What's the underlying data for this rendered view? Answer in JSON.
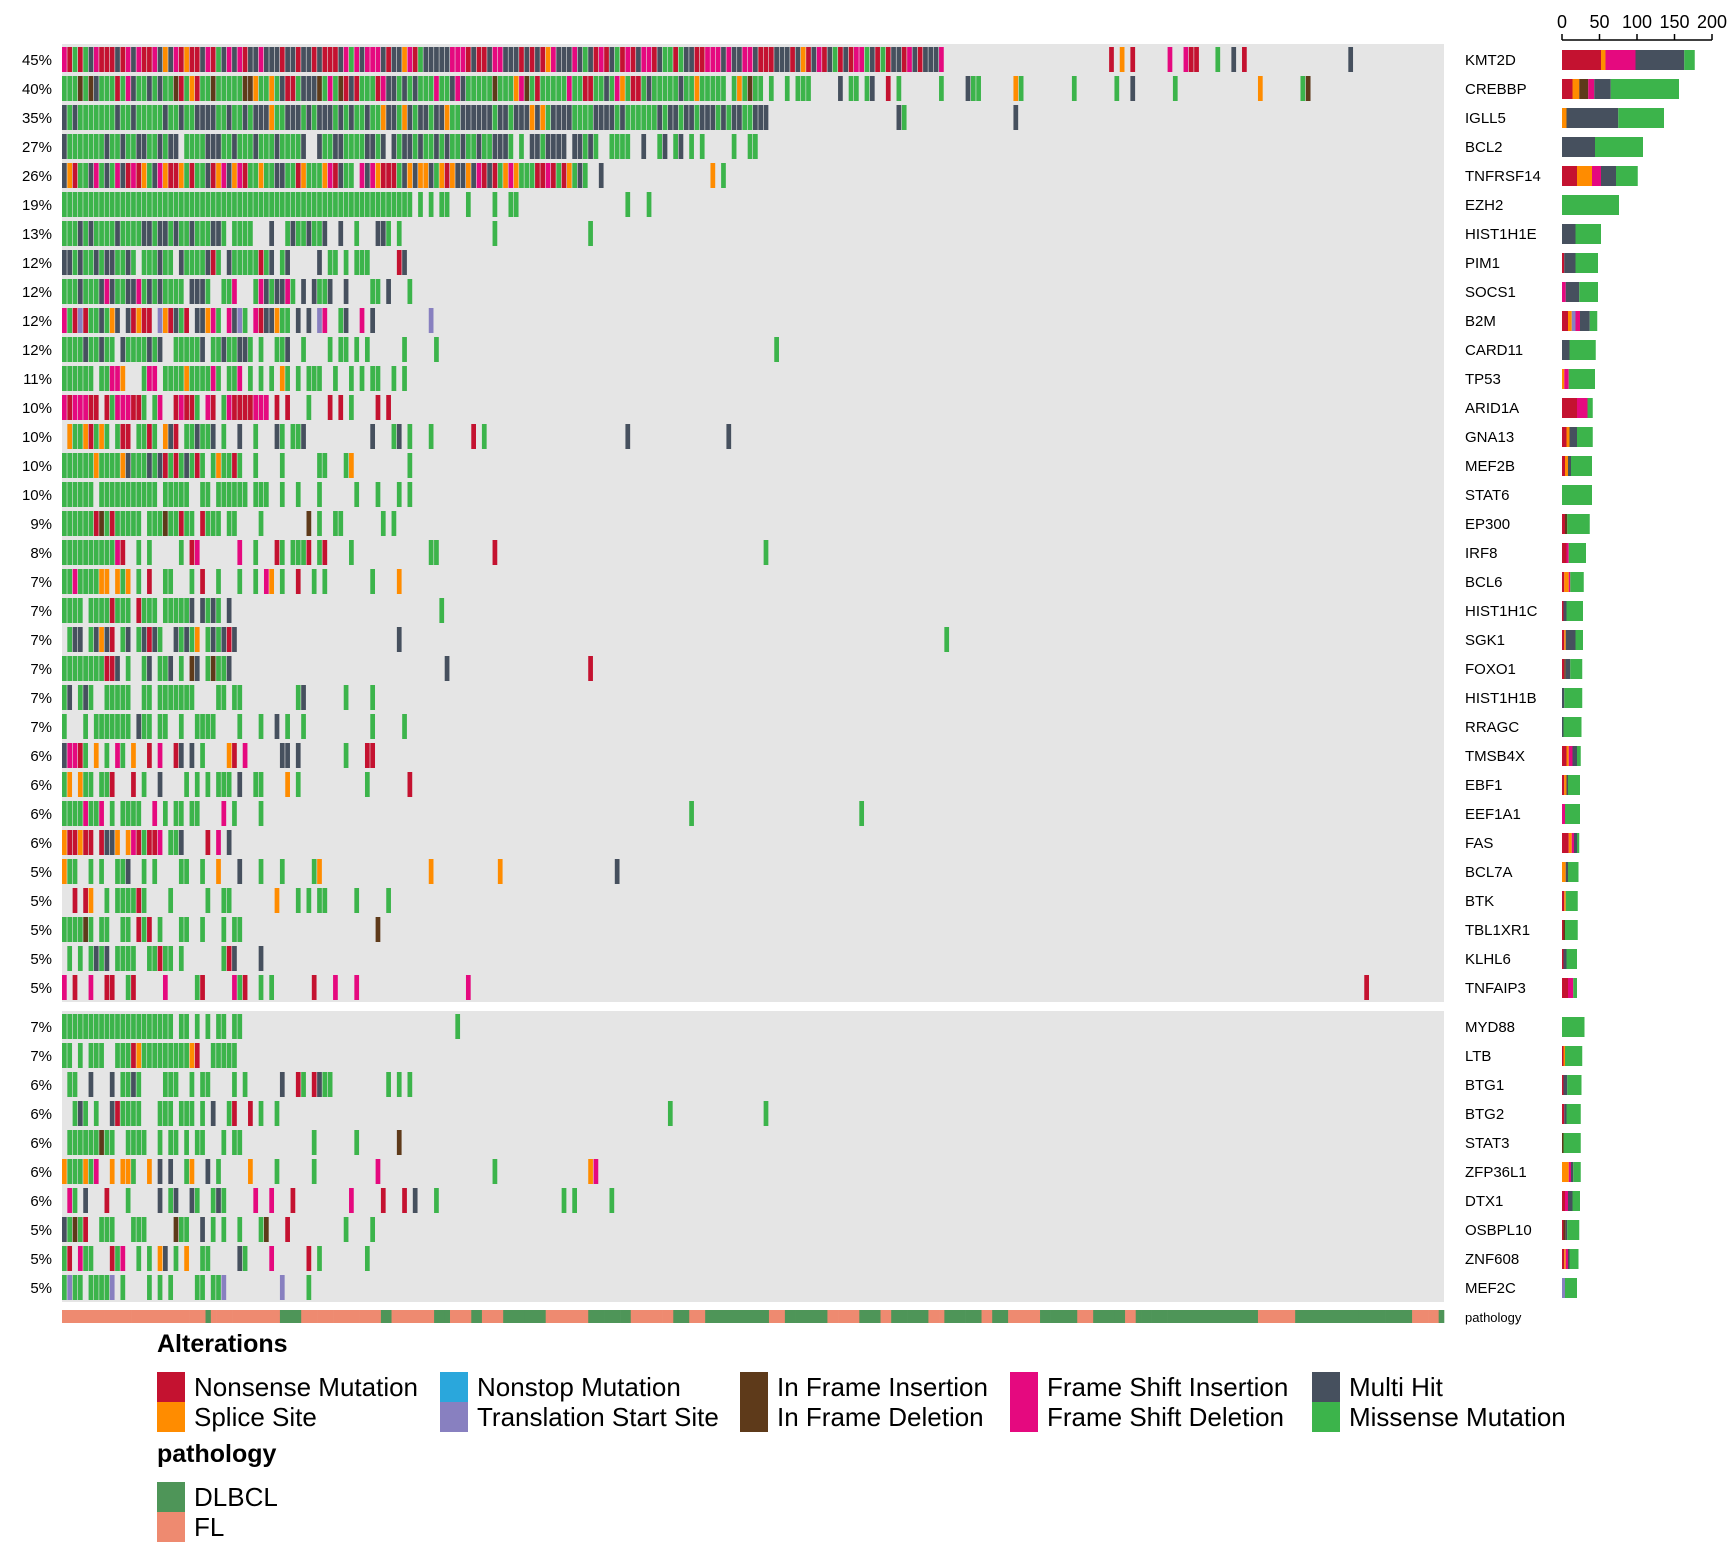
{
  "chart_data": {
    "type": "heatmap",
    "title": "",
    "n_samples": 260,
    "top_axis": {
      "ticks": [
        0,
        50,
        100,
        150,
        200
      ],
      "labels": [
        "0",
        "50",
        "100",
        "150",
        "200"
      ],
      "max": 200
    },
    "alteration_types": [
      {
        "name": "Nonsense Mutation",
        "color": "#C41230"
      },
      {
        "name": "Splice Site",
        "color": "#FF8C00"
      },
      {
        "name": "Nonstop Mutation",
        "color": "#2AA7DC"
      },
      {
        "name": "Translation Start Site",
        "color": "#8880C0"
      },
      {
        "name": "In Frame Insertion",
        "color": "#5E3A1A"
      },
      {
        "name": "In Frame Deletion",
        "color": "#5E3A1A"
      },
      {
        "name": "Frame Shift Insertion",
        "color": "#E5097F"
      },
      {
        "name": "Frame Shift Deletion",
        "color": "#E5097F"
      },
      {
        "name": "Multi Hit",
        "color": "#46505E"
      },
      {
        "name": "Missense Mutation",
        "color": "#3CB44B"
      }
    ],
    "genes_group1": [
      {
        "gene": "KMT2D",
        "pct": "45%",
        "total": 177,
        "breakdown": {
          "Nonsense Mutation": 52,
          "Splice Site": 6,
          "Frame Shift Insertion": 40,
          "Multi Hit": 65,
          "Missense Mutation": 14
        }
      },
      {
        "gene": "CREBBP",
        "pct": "40%",
        "total": 156,
        "breakdown": {
          "Nonsense Mutation": 14,
          "Splice Site": 9,
          "In Frame Deletion": 12,
          "Frame Shift Insertion": 8,
          "Multi Hit": 22,
          "Missense Mutation": 91
        }
      },
      {
        "gene": "IGLL5",
        "pct": "35%",
        "total": 136,
        "breakdown": {
          "Splice Site": 6,
          "Multi Hit": 69,
          "Missense Mutation": 61
        }
      },
      {
        "gene": "BCL2",
        "pct": "27%",
        "total": 108,
        "breakdown": {
          "Multi Hit": 44,
          "Missense Mutation": 64
        }
      },
      {
        "gene": "TNFRSF14",
        "pct": "26%",
        "total": 101,
        "breakdown": {
          "Nonsense Mutation": 20,
          "Splice Site": 20,
          "Frame Shift Insertion": 12,
          "Multi Hit": 20,
          "Missense Mutation": 29
        }
      },
      {
        "gene": "EZH2",
        "pct": "19%",
        "total": 76,
        "breakdown": {
          "Missense Mutation": 76
        }
      },
      {
        "gene": "HIST1H1E",
        "pct": "13%",
        "total": 52,
        "breakdown": {
          "Multi Hit": 18,
          "Missense Mutation": 34
        }
      },
      {
        "gene": "PIM1",
        "pct": "12%",
        "total": 48,
        "breakdown": {
          "Nonsense Mutation": 3,
          "Multi Hit": 15,
          "Missense Mutation": 30
        }
      },
      {
        "gene": "SOCS1",
        "pct": "12%",
        "total": 48,
        "breakdown": {
          "Frame Shift Insertion": 5,
          "Multi Hit": 18,
          "Missense Mutation": 25
        }
      },
      {
        "gene": "B2M",
        "pct": "12%",
        "total": 47,
        "breakdown": {
          "Nonsense Mutation": 8,
          "Splice Site": 5,
          "Translation Start Site": 5,
          "Frame Shift Insertion": 6,
          "Multi Hit": 13,
          "Missense Mutation": 10
        }
      },
      {
        "gene": "CARD11",
        "pct": "12%",
        "total": 45,
        "breakdown": {
          "Multi Hit": 10,
          "Missense Mutation": 35
        }
      },
      {
        "gene": "TP53",
        "pct": "11%",
        "total": 44,
        "breakdown": {
          "Splice Site": 3,
          "Frame Shift Insertion": 6,
          "Missense Mutation": 35
        }
      },
      {
        "gene": "ARID1A",
        "pct": "10%",
        "total": 41,
        "breakdown": {
          "Nonsense Mutation": 20,
          "Frame Shift Insertion": 14,
          "Missense Mutation": 7
        }
      },
      {
        "gene": "GNA13",
        "pct": "10%",
        "total": 41,
        "breakdown": {
          "Nonsense Mutation": 6,
          "Splice Site": 4,
          "Multi Hit": 10,
          "Missense Mutation": 21
        }
      },
      {
        "gene": "MEF2B",
        "pct": "10%",
        "total": 40,
        "breakdown": {
          "Nonsense Mutation": 4,
          "Splice Site": 4,
          "Multi Hit": 4,
          "Missense Mutation": 28
        }
      },
      {
        "gene": "STAT6",
        "pct": "10%",
        "total": 40,
        "breakdown": {
          "Missense Mutation": 40
        }
      },
      {
        "gene": "EP300",
        "pct": "9%",
        "total": 37,
        "breakdown": {
          "Nonsense Mutation": 4,
          "In Frame Deletion": 3,
          "Missense Mutation": 30
        }
      },
      {
        "gene": "IRF8",
        "pct": "8%",
        "total": 32,
        "breakdown": {
          "Nonsense Mutation": 6,
          "Frame Shift Insertion": 3,
          "Missense Mutation": 23
        }
      },
      {
        "gene": "BCL6",
        "pct": "7%",
        "total": 29,
        "breakdown": {
          "Nonsense Mutation": 3,
          "Splice Site": 6,
          "Frame Shift Insertion": 2,
          "Missense Mutation": 18
        }
      },
      {
        "gene": "HIST1H1C",
        "pct": "7%",
        "total": 28,
        "breakdown": {
          "Nonsense Mutation": 2,
          "Multi Hit": 4,
          "Missense Mutation": 22
        }
      },
      {
        "gene": "SGK1",
        "pct": "7%",
        "total": 28,
        "breakdown": {
          "Nonsense Mutation": 3,
          "Splice Site": 2,
          "Multi Hit": 13,
          "Missense Mutation": 10
        }
      },
      {
        "gene": "FOXO1",
        "pct": "7%",
        "total": 27,
        "breakdown": {
          "Nonsense Mutation": 3,
          "In Frame Deletion": 2,
          "Multi Hit": 6,
          "Missense Mutation": 16
        }
      },
      {
        "gene": "HIST1H1B",
        "pct": "7%",
        "total": 27,
        "breakdown": {
          "Multi Hit": 3,
          "Missense Mutation": 24
        }
      },
      {
        "gene": "RRAGC",
        "pct": "7%",
        "total": 26,
        "breakdown": {
          "Multi Hit": 2,
          "Missense Mutation": 24
        }
      },
      {
        "gene": "TMSB4X",
        "pct": "6%",
        "total": 25,
        "breakdown": {
          "Nonsense Mutation": 6,
          "Splice Site": 3,
          "Frame Shift Insertion": 5,
          "Multi Hit": 6,
          "Missense Mutation": 5
        }
      },
      {
        "gene": "EBF1",
        "pct": "6%",
        "total": 24,
        "breakdown": {
          "Nonsense Mutation": 3,
          "Splice Site": 3,
          "Multi Hit": 2,
          "Missense Mutation": 16
        }
      },
      {
        "gene": "EEF1A1",
        "pct": "6%",
        "total": 24,
        "breakdown": {
          "Frame Shift Insertion": 4,
          "Missense Mutation": 20
        }
      },
      {
        "gene": "FAS",
        "pct": "6%",
        "total": 23,
        "breakdown": {
          "Nonsense Mutation": 9,
          "Splice Site": 4,
          "Frame Shift Insertion": 3,
          "Multi Hit": 4,
          "Missense Mutation": 3
        }
      },
      {
        "gene": "BCL7A",
        "pct": "5%",
        "total": 22,
        "breakdown": {
          "Splice Site": 5,
          "Multi Hit": 3,
          "Missense Mutation": 14
        }
      },
      {
        "gene": "BTK",
        "pct": "5%",
        "total": 21,
        "breakdown": {
          "Nonsense Mutation": 3,
          "Splice Site": 2,
          "Missense Mutation": 16
        }
      },
      {
        "gene": "TBL1XR1",
        "pct": "5%",
        "total": 21,
        "breakdown": {
          "Nonsense Mutation": 2,
          "In Frame Deletion": 2,
          "Missense Mutation": 17
        }
      },
      {
        "gene": "KLHL6",
        "pct": "5%",
        "total": 20,
        "breakdown": {
          "Nonsense Mutation": 2,
          "Multi Hit": 4,
          "Missense Mutation": 14
        }
      },
      {
        "gene": "TNFAIP3",
        "pct": "5%",
        "total": 20,
        "breakdown": {
          "Nonsense Mutation": 8,
          "Frame Shift Insertion": 7,
          "Missense Mutation": 5
        }
      }
    ],
    "genes_group2": [
      {
        "gene": "MYD88",
        "pct": "7%",
        "total": 30,
        "breakdown": {
          "Missense Mutation": 30
        }
      },
      {
        "gene": "LTB",
        "pct": "7%",
        "total": 27,
        "breakdown": {
          "Nonsense Mutation": 2,
          "Splice Site": 2,
          "Missense Mutation": 23
        }
      },
      {
        "gene": "BTG1",
        "pct": "6%",
        "total": 26,
        "breakdown": {
          "Nonsense Mutation": 2,
          "Multi Hit": 5,
          "Missense Mutation": 19
        }
      },
      {
        "gene": "BTG2",
        "pct": "6%",
        "total": 25,
        "breakdown": {
          "Nonsense Mutation": 3,
          "Multi Hit": 3,
          "Missense Mutation": 19
        }
      },
      {
        "gene": "STAT3",
        "pct": "6%",
        "total": 25,
        "breakdown": {
          "In Frame Deletion": 2,
          "Missense Mutation": 23
        }
      },
      {
        "gene": "ZFP36L1",
        "pct": "6%",
        "total": 25,
        "breakdown": {
          "Splice Site": 9,
          "Frame Shift Insertion": 3,
          "Multi Hit": 3,
          "Missense Mutation": 10
        }
      },
      {
        "gene": "DTX1",
        "pct": "6%",
        "total": 24,
        "breakdown": {
          "Nonsense Mutation": 4,
          "Frame Shift Insertion": 4,
          "Multi Hit": 6,
          "Missense Mutation": 10
        }
      },
      {
        "gene": "OSBPL10",
        "pct": "5%",
        "total": 23,
        "breakdown": {
          "Nonsense Mutation": 2,
          "In Frame Deletion": 3,
          "Multi Hit": 2,
          "Missense Mutation": 16
        }
      },
      {
        "gene": "ZNF608",
        "pct": "5%",
        "total": 22,
        "breakdown": {
          "Nonsense Mutation": 3,
          "Splice Site": 2,
          "Frame Shift Insertion": 3,
          "Multi Hit": 2,
          "Missense Mutation": 12
        }
      },
      {
        "gene": "MEF2C",
        "pct": "5%",
        "total": 20,
        "breakdown": {
          "Translation Start Site": 4,
          "Missense Mutation": 16
        }
      }
    ],
    "annotation": {
      "label": "pathology",
      "categories": [
        {
          "name": "DLBCL",
          "color": "#4E9558"
        },
        {
          "name": "FL",
          "color": "#EE8A70"
        }
      ],
      "dlbcl_fraction": 0.48
    },
    "colors": {
      "background": "#E5E5E5",
      "no_alteration": "#E5E5E5"
    }
  },
  "legend": {
    "alterations_title": "Alterations",
    "alterations": [
      [
        "Nonsense Mutation",
        "#C41230"
      ],
      [
        "Splice Site",
        "#FF8C00"
      ],
      [
        "Nonstop Mutation",
        "#2AA7DC"
      ],
      [
        "Translation Start Site",
        "#8880C0"
      ],
      [
        "In Frame Insertion",
        "#5E3A1A"
      ],
      [
        "In Frame Deletion",
        "#5E3A1A"
      ],
      [
        "Frame Shift Insertion",
        "#E5097F"
      ],
      [
        "Frame Shift Deletion",
        "#E5097F"
      ],
      [
        "Multi Hit",
        "#46505E"
      ],
      [
        "Missense Mutation",
        "#3CB44B"
      ]
    ],
    "pathology_title": "pathology",
    "pathology": [
      [
        "DLBCL",
        "#4E9558"
      ],
      [
        "FL",
        "#EE8A70"
      ]
    ]
  }
}
